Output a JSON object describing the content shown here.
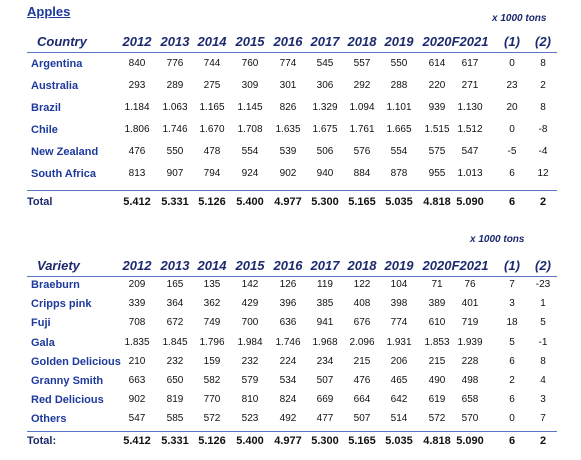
{
  "title": "Apples",
  "tables": [
    {
      "unit": "x 1000 tons",
      "header": [
        "Country",
        "2012",
        "2013",
        "2014",
        "2015",
        "2016",
        "2017",
        "2018",
        "2019",
        "2020",
        "F2021",
        "(1)",
        "(2)"
      ],
      "rows": [
        [
          "Argentina",
          "840",
          "776",
          "744",
          "760",
          "774",
          "545",
          "557",
          "550",
          "614",
          "617",
          "0",
          "8"
        ],
        [
          "Australia",
          "293",
          "289",
          "275",
          "309",
          "301",
          "306",
          "292",
          "288",
          "220",
          "271",
          "23",
          "2"
        ],
        [
          "Brazil",
          "1.184",
          "1.063",
          "1.165",
          "1.145",
          "826",
          "1.329",
          "1.094",
          "1.101",
          "939",
          "1.130",
          "20",
          "8"
        ],
        [
          "Chile",
          "1.806",
          "1.746",
          "1.670",
          "1.708",
          "1.635",
          "1.675",
          "1.761",
          "1.665",
          "1.515",
          "1.512",
          "0",
          "-8"
        ],
        [
          "New Zealand",
          "476",
          "550",
          "478",
          "554",
          "539",
          "506",
          "576",
          "554",
          "575",
          "547",
          "-5",
          "-4"
        ],
        [
          "South Africa",
          "813",
          "907",
          "794",
          "924",
          "902",
          "940",
          "884",
          "878",
          "955",
          "1.013",
          "6",
          "12"
        ]
      ],
      "total": [
        "Total",
        "5.412",
        "5.331",
        "5.126",
        "5.400",
        "4.977",
        "5.300",
        "5.165",
        "5.035",
        "4.818",
        "5.090",
        "6",
        "2"
      ]
    },
    {
      "unit": "x 1000 tons",
      "header": [
        "Variety",
        "2012",
        "2013",
        "2014",
        "2015",
        "2016",
        "2017",
        "2018",
        "2019",
        "2020",
        "F2021",
        "(1)",
        "(2)"
      ],
      "rows": [
        [
          "Braeburn",
          "209",
          "165",
          "135",
          "142",
          "126",
          "119",
          "122",
          "104",
          "71",
          "76",
          "7",
          "-23"
        ],
        [
          "Cripps pink",
          "339",
          "364",
          "362",
          "429",
          "396",
          "385",
          "408",
          "398",
          "389",
          "401",
          "3",
          "1"
        ],
        [
          "Fuji",
          "708",
          "672",
          "749",
          "700",
          "636",
          "941",
          "676",
          "774",
          "610",
          "719",
          "18",
          "5"
        ],
        [
          "Gala",
          "1.835",
          "1.845",
          "1.796",
          "1.984",
          "1.746",
          "1.968",
          "2.096",
          "1.931",
          "1.853",
          "1.939",
          "5",
          "-1"
        ],
        [
          "Golden Delicious",
          "210",
          "232",
          "159",
          "232",
          "224",
          "234",
          "215",
          "206",
          "215",
          "228",
          "6",
          "8"
        ],
        [
          "Granny Smith",
          "663",
          "650",
          "582",
          "579",
          "534",
          "507",
          "476",
          "465",
          "490",
          "498",
          "2",
          "4"
        ],
        [
          "Red Delicious",
          "902",
          "819",
          "770",
          "810",
          "824",
          "669",
          "664",
          "642",
          "619",
          "658",
          "6",
          "3"
        ],
        [
          "Others",
          "547",
          "585",
          "572",
          "523",
          "492",
          "477",
          "507",
          "514",
          "572",
          "570",
          "0",
          "7"
        ]
      ],
      "total": [
        "Total:",
        "5.412",
        "5.331",
        "5.126",
        "5.400",
        "4.977",
        "5.300",
        "5.165",
        "5.035",
        "4.818",
        "5.090",
        "6",
        "2"
      ]
    }
  ]
}
